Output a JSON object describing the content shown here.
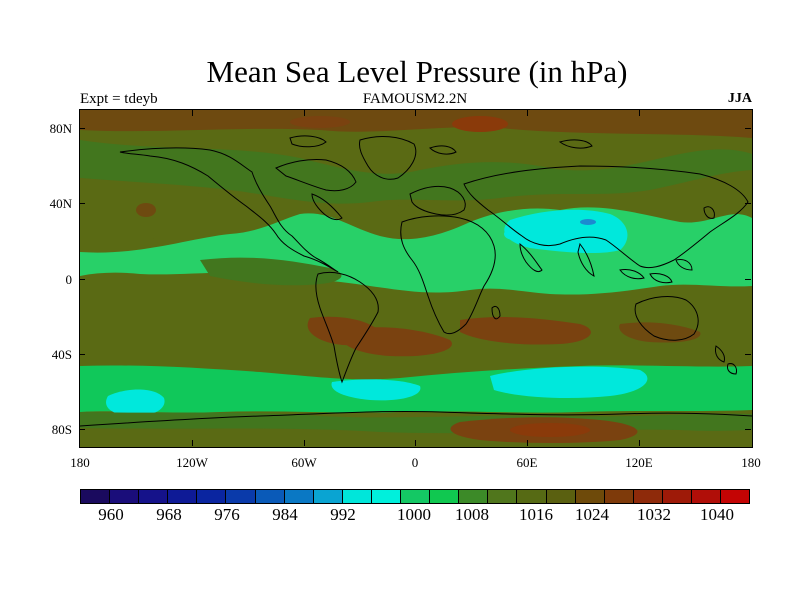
{
  "title": "Mean Sea Level Pressure (in hPa)",
  "subtitle_left": "Expt = tdeyb",
  "subtitle_center": "FAMOUSM2.2N",
  "subtitle_right": "JJA",
  "y_tick_labels": [
    "80N",
    "40N",
    "0",
    "40S",
    "80S"
  ],
  "x_tick_labels": [
    "180",
    "120W",
    "60W",
    "0",
    "60E",
    "120E",
    "180"
  ],
  "colorbar": {
    "labels": [
      "960",
      "968",
      "976",
      "984",
      "992",
      "1000",
      "1008",
      "1016",
      "1024",
      "1032",
      "1040"
    ],
    "colors": [
      "#1a0a5e",
      "#1a0d7a",
      "#15128a",
      "#0e1a96",
      "#0a25a0",
      "#0a3aaa",
      "#0a5ab8",
      "#0a78c4",
      "#0aa4d2",
      "#00e6da",
      "#00f0dc",
      "#14c864",
      "#10c850",
      "#3c8a28",
      "#50761c",
      "#566a14",
      "#5a6010",
      "#6e4a0a",
      "#7e3a0a",
      "#8e2a0a",
      "#9e1a08",
      "#b00e08",
      "#c40404"
    ]
  },
  "map": {
    "projection": "cylindrical equidistant",
    "lon_range": [
      -180,
      180
    ],
    "lat_range": [
      -90,
      90
    ],
    "palette": {
      "deep_green": "#42761e",
      "olive": "#5a6a14",
      "brown": "#7a4210",
      "bright_green": "#10c85a",
      "light_green": "#28d068",
      "cyan": "#00e8dc",
      "blue": "#1c8ad0",
      "red": "#b02a0a"
    }
  }
}
